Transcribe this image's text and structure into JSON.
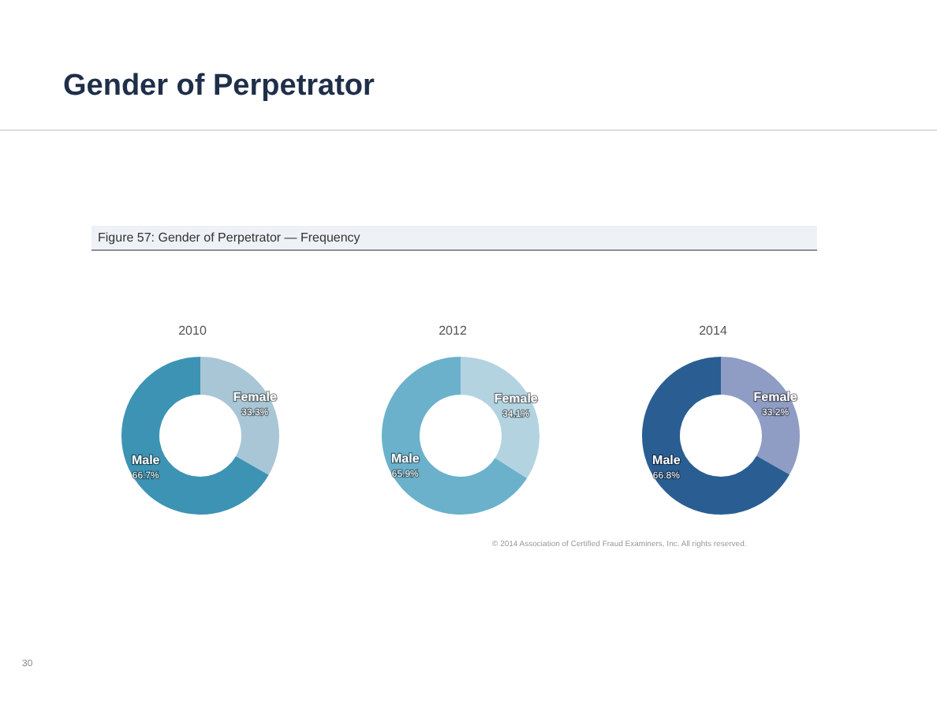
{
  "chart_data": [
    {
      "type": "donut",
      "title": "2010",
      "categories": [
        "Female",
        "Male"
      ],
      "values": [
        33.3,
        66.7
      ],
      "value_labels": [
        "33.3%",
        "66.7%"
      ],
      "colors": [
        "#a9c6d6",
        "#3d93b4"
      ],
      "annotations": [
        "Gender of Perpetrator",
        "Figure 57: Gender of Perpetrator — Frequency",
        "© 2014 Association of Certified Fraud Examiners, Inc. All rights reserved.",
        "30"
      ]
    },
    {
      "type": "donut",
      "title": "2012",
      "categories": [
        "Female",
        "Male"
      ],
      "values": [
        34.1,
        65.9
      ],
      "value_labels": [
        "34.1%",
        "65.9%"
      ],
      "colors": [
        "#b3d3e0",
        "#6bb1cc"
      ]
    },
    {
      "type": "donut",
      "title": "2014",
      "categories": [
        "Female",
        "Male"
      ],
      "values": [
        33.2,
        66.8
      ],
      "value_labels": [
        "33.2%",
        "66.8%"
      ],
      "colors": [
        "#8f9dc4",
        "#2a5e93"
      ]
    }
  ]
}
